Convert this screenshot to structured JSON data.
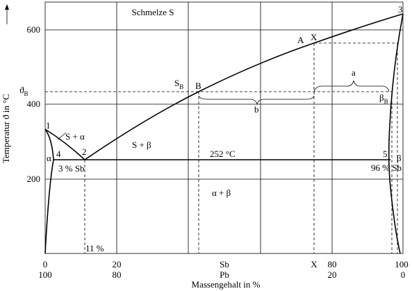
{
  "title": "Schmelze S",
  "y_axis": {
    "label": "Temperatur ϑ in °C",
    "ticks": [
      "600",
      "400",
      "200"
    ]
  },
  "x_axis": {
    "label": "Massengehalt in %",
    "top_row": [
      "0",
      "20",
      "Sb",
      "X",
      "80",
      "100"
    ],
    "bottom_row": [
      "100",
      "80",
      "Pb",
      "20",
      "0"
    ]
  },
  "points": {
    "A": "A",
    "X": "X",
    "n3": "3",
    "SB": "S",
    "SB_sub": "B",
    "B": "B",
    "a": "a",
    "b": "b",
    "theta": "ϑ",
    "theta_sub": "B",
    "beta": "β",
    "beta_sub": "B",
    "n1": "1",
    "n2": "2",
    "n4": "4",
    "n5": "5",
    "alpha": "α",
    "beta2": "β"
  },
  "regions": {
    "s_alpha": "S + α",
    "s_beta": "S + β",
    "eutectic": "252 °C",
    "alpha_beta": "α + β",
    "sb3": "3 % Sb",
    "sb96": "96 % Sb",
    "pct11": "11 %"
  }
}
